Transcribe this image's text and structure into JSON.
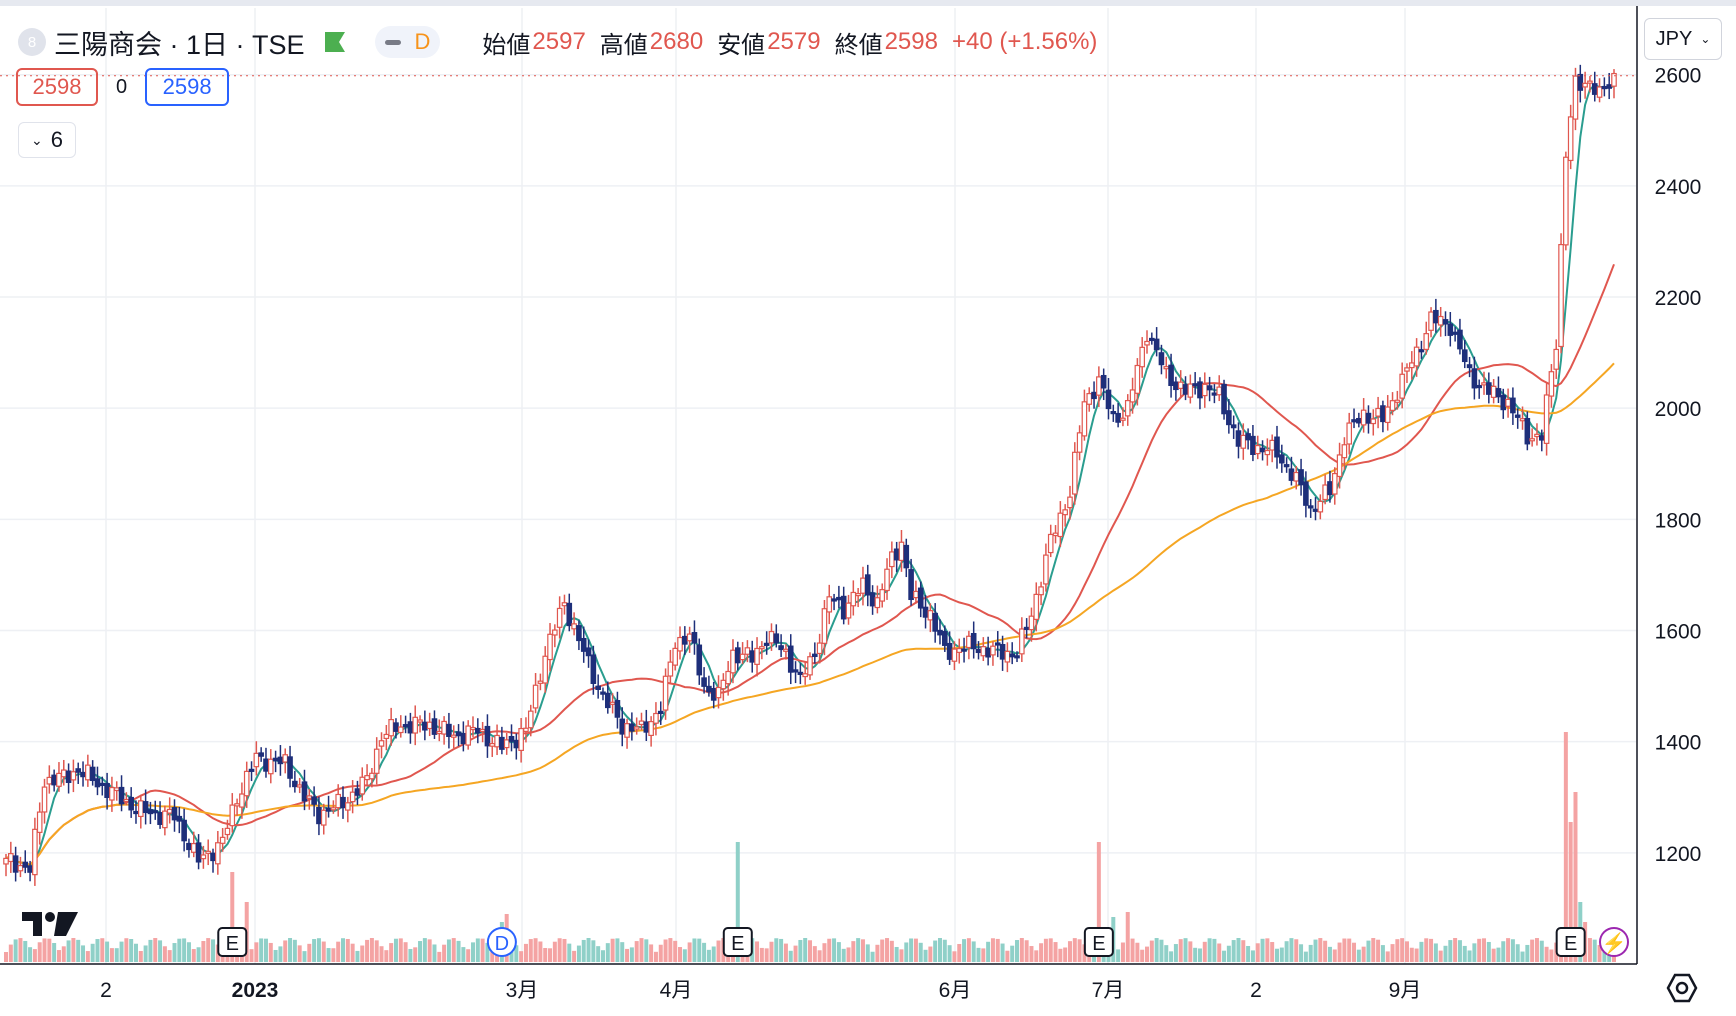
{
  "legend": {
    "logo_letter": "8",
    "symbol": "三陽商会 · 1日 · TSE",
    "badge_letter": "D",
    "open_label": "始値",
    "open": "2597",
    "high_label": "高値",
    "high": "2680",
    "low_label": "安値",
    "low": "2579",
    "close_label": "終値",
    "close": "2598",
    "change": "+40 (+1.56%)"
  },
  "trade": {
    "sell": "2598",
    "spread": "0",
    "buy": "2598"
  },
  "indicators_count": "6",
  "currency": "JPY",
  "colors": {
    "up": "#e0574f",
    "down": "#1e2f7a",
    "ma_fast": "#2a9d8f",
    "ma_mid": "#e0574f",
    "ma_slow": "#f5a623",
    "vol_up": "#f4a3a3",
    "vol_down": "#8fd0c8"
  },
  "chart_data": {
    "type": "candlestick",
    "x_labels": [
      "2",
      "2023",
      "3月",
      "4月",
      "6月",
      "7月",
      "2",
      "9月"
    ],
    "ylim": [
      1000,
      2720
    ],
    "y_ticks": [
      1200,
      1400,
      1600,
      1800,
      2000,
      2200,
      2400,
      2600
    ],
    "y_labels": [
      "1200",
      "1400",
      "1600",
      "1800",
      "2000",
      "2200",
      "2400",
      "2600"
    ],
    "last_price": 2598,
    "event_markers": [
      {
        "label": "E",
        "date_index": 47
      },
      {
        "label": "D",
        "date_index": 103
      },
      {
        "label": "E",
        "date_index": 152
      },
      {
        "label": "E",
        "date_index": 227
      },
      {
        "label": "E",
        "date_index": 325
      },
      {
        "label": "⚡",
        "date_index": 334
      }
    ],
    "anchors": [
      [
        0,
        1190
      ],
      [
        5,
        1170
      ],
      [
        8,
        1330
      ],
      [
        12,
        1335
      ],
      [
        15,
        1350
      ],
      [
        20,
        1320
      ],
      [
        28,
        1275
      ],
      [
        35,
        1265
      ],
      [
        40,
        1185
      ],
      [
        45,
        1220
      ],
      [
        48,
        1300
      ],
      [
        52,
        1370
      ],
      [
        58,
        1360
      ],
      [
        62,
        1300
      ],
      [
        65,
        1270
      ],
      [
        70,
        1290
      ],
      [
        75,
        1330
      ],
      [
        78,
        1410
      ],
      [
        82,
        1430
      ],
      [
        88,
        1430
      ],
      [
        93,
        1410
      ],
      [
        98,
        1420
      ],
      [
        103,
        1390
      ],
      [
        108,
        1420
      ],
      [
        112,
        1560
      ],
      [
        116,
        1650
      ],
      [
        120,
        1560
      ],
      [
        124,
        1480
      ],
      [
        128,
        1430
      ],
      [
        132,
        1420
      ],
      [
        136,
        1460
      ],
      [
        139,
        1580
      ],
      [
        142,
        1590
      ],
      [
        145,
        1500
      ],
      [
        148,
        1480
      ],
      [
        151,
        1560
      ],
      [
        155,
        1550
      ],
      [
        158,
        1590
      ],
      [
        162,
        1560
      ],
      [
        165,
        1510
      ],
      [
        168,
        1560
      ],
      [
        171,
        1660
      ],
      [
        174,
        1640
      ],
      [
        178,
        1680
      ],
      [
        181,
        1650
      ],
      [
        184,
        1730
      ],
      [
        186,
        1760
      ],
      [
        188,
        1660
      ],
      [
        192,
        1630
      ],
      [
        195,
        1560
      ],
      [
        198,
        1570
      ],
      [
        202,
        1570
      ],
      [
        206,
        1560
      ],
      [
        210,
        1560
      ],
      [
        213,
        1630
      ],
      [
        217,
        1760
      ],
      [
        221,
        1850
      ],
      [
        224,
        2010
      ],
      [
        227,
        2050
      ],
      [
        230,
        1980
      ],
      [
        233,
        2000
      ],
      [
        237,
        2140
      ],
      [
        241,
        2060
      ],
      [
        245,
        2030
      ],
      [
        249,
        2040
      ],
      [
        252,
        2020
      ],
      [
        256,
        1940
      ],
      [
        260,
        1930
      ],
      [
        264,
        1920
      ],
      [
        268,
        1870
      ],
      [
        271,
        1820
      ],
      [
        275,
        1850
      ],
      [
        278,
        1950
      ],
      [
        282,
        1990
      ],
      [
        286,
        1980
      ],
      [
        290,
        2050
      ],
      [
        293,
        2100
      ],
      [
        296,
        2160
      ],
      [
        300,
        2150
      ],
      [
        304,
        2060
      ],
      [
        308,
        2030
      ],
      [
        312,
        2010
      ],
      [
        316,
        1950
      ],
      [
        319,
        1950
      ],
      [
        322,
        2120
      ],
      [
        324,
        2460
      ],
      [
        326,
        2580
      ],
      [
        329,
        2590
      ],
      [
        331,
        2560
      ],
      [
        334,
        2598
      ]
    ],
    "ma_fast_name": "",
    "ma_mid_name": "",
    "ma_slow_name": ""
  }
}
